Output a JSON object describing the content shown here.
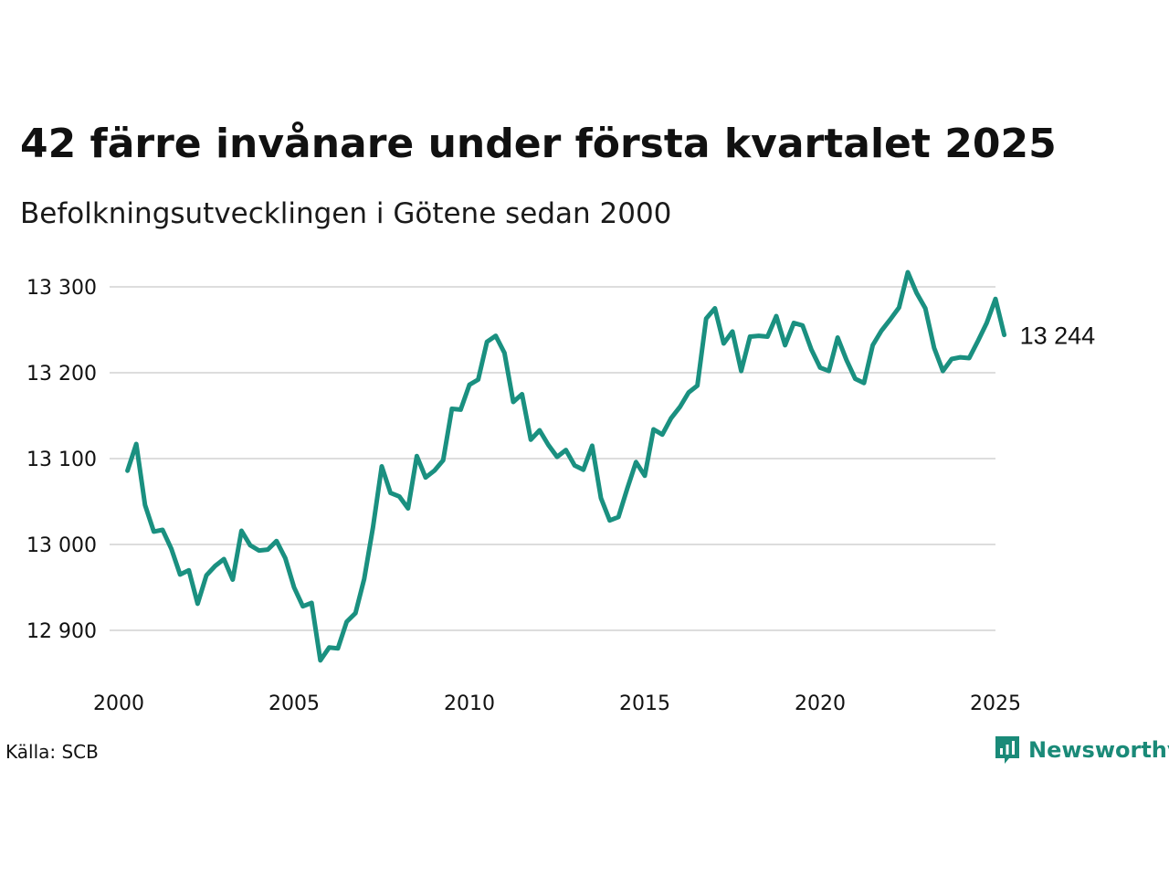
{
  "title": "42 färre invånare under första kvartalet 2025",
  "subtitle": "Befolkningsutvecklingen i Götene sedan 2000",
  "source": "Källa: SCB",
  "brand": {
    "name": "Newsworthy",
    "icon": "newsworthy-logo-icon"
  },
  "colors": {
    "line": "#1a9080",
    "grid": "#dddddd",
    "brand": "#1a8a78"
  },
  "chart_data": {
    "type": "line",
    "title": "42 färre invånare under första kvartalet 2025",
    "subtitle": "Befolkningsutvecklingen i Götene sedan 2000",
    "xlabel": "",
    "ylabel": "",
    "xlim": [
      2000,
      2025.25
    ],
    "ylim": [
      12850,
      13320
    ],
    "grid": true,
    "x_ticks": [
      2000,
      2005,
      2010,
      2015,
      2020,
      2025
    ],
    "x_tick_labels": [
      "2000",
      "2005",
      "2010",
      "2015",
      "2020",
      "2025"
    ],
    "y_ticks": [
      12900,
      13000,
      13100,
      13200,
      13300
    ],
    "y_tick_labels": [
      "12 900",
      "13 000",
      "13 100",
      "13 200",
      "13 300"
    ],
    "end_label": "13 244",
    "series": [
      {
        "x": [
          2000.25,
          2000.5,
          2000.75,
          2001,
          2001.25,
          2001.5,
          2001.75,
          2002,
          2002.25,
          2002.5,
          2002.75,
          2003,
          2003.25,
          2003.5,
          2003.75,
          2004,
          2004.25,
          2004.5,
          2004.75,
          2005,
          2005.25,
          2005.5,
          2005.75,
          2006,
          2006.25,
          2006.5,
          2006.75,
          2007,
          2007.25,
          2007.5,
          2007.75,
          2008,
          2008.25,
          2008.5,
          2008.75,
          2009,
          2009.25,
          2009.5,
          2009.75,
          2010,
          2010.25,
          2010.5,
          2010.75,
          2011,
          2011.25,
          2011.5,
          2011.75,
          2012,
          2012.25,
          2012.5,
          2012.75,
          2013,
          2013.25,
          2013.5,
          2013.75,
          2014,
          2014.25,
          2014.5,
          2014.75,
          2015,
          2015.25,
          2015.5,
          2015.75,
          2016,
          2016.25,
          2016.5,
          2016.75,
          2017,
          2017.25,
          2017.5,
          2017.75,
          2018,
          2018.25,
          2018.5,
          2018.75,
          2019,
          2019.25,
          2019.5,
          2019.75,
          2020,
          2020.25,
          2020.5,
          2020.75,
          2021,
          2021.25,
          2021.5,
          2021.75,
          2022,
          2022.25,
          2022.5,
          2022.75,
          2023,
          2023.25,
          2023.5,
          2023.75,
          2024,
          2024.25,
          2024.5,
          2024.75,
          2025,
          2025.25
        ],
        "values": [
          13086,
          13117,
          13046,
          13015,
          13017,
          12995,
          12965,
          12970,
          12931,
          12964,
          12975,
          12983,
          12959,
          13016,
          12999,
          12993,
          12994,
          13004,
          12984,
          12950,
          12928,
          12932,
          12865,
          12880,
          12879,
          12910,
          12920,
          12960,
          13020,
          13091,
          13060,
          13056,
          13042,
          13103,
          13078,
          13086,
          13098,
          13158,
          13157,
          13186,
          13192,
          13236,
          13243,
          13223,
          13166,
          13175,
          13122,
          13133,
          13116,
          13102,
          13110,
          13092,
          13087,
          13115,
          13054,
          13028,
          13032,
          13065,
          13096,
          13080,
          13134,
          13128,
          13147,
          13160,
          13177,
          13185,
          13263,
          13275,
          13234,
          13248,
          13202,
          13242,
          13243,
          13242,
          13266,
          13232,
          13258,
          13255,
          13227,
          13206,
          13202,
          13241,
          13215,
          13193,
          13188,
          13232,
          13249,
          13262,
          13276,
          13317,
          13293,
          13275,
          13229,
          13202,
          13216,
          13218,
          13217,
          13237,
          13258,
          13286,
          13244
        ]
      }
    ]
  }
}
